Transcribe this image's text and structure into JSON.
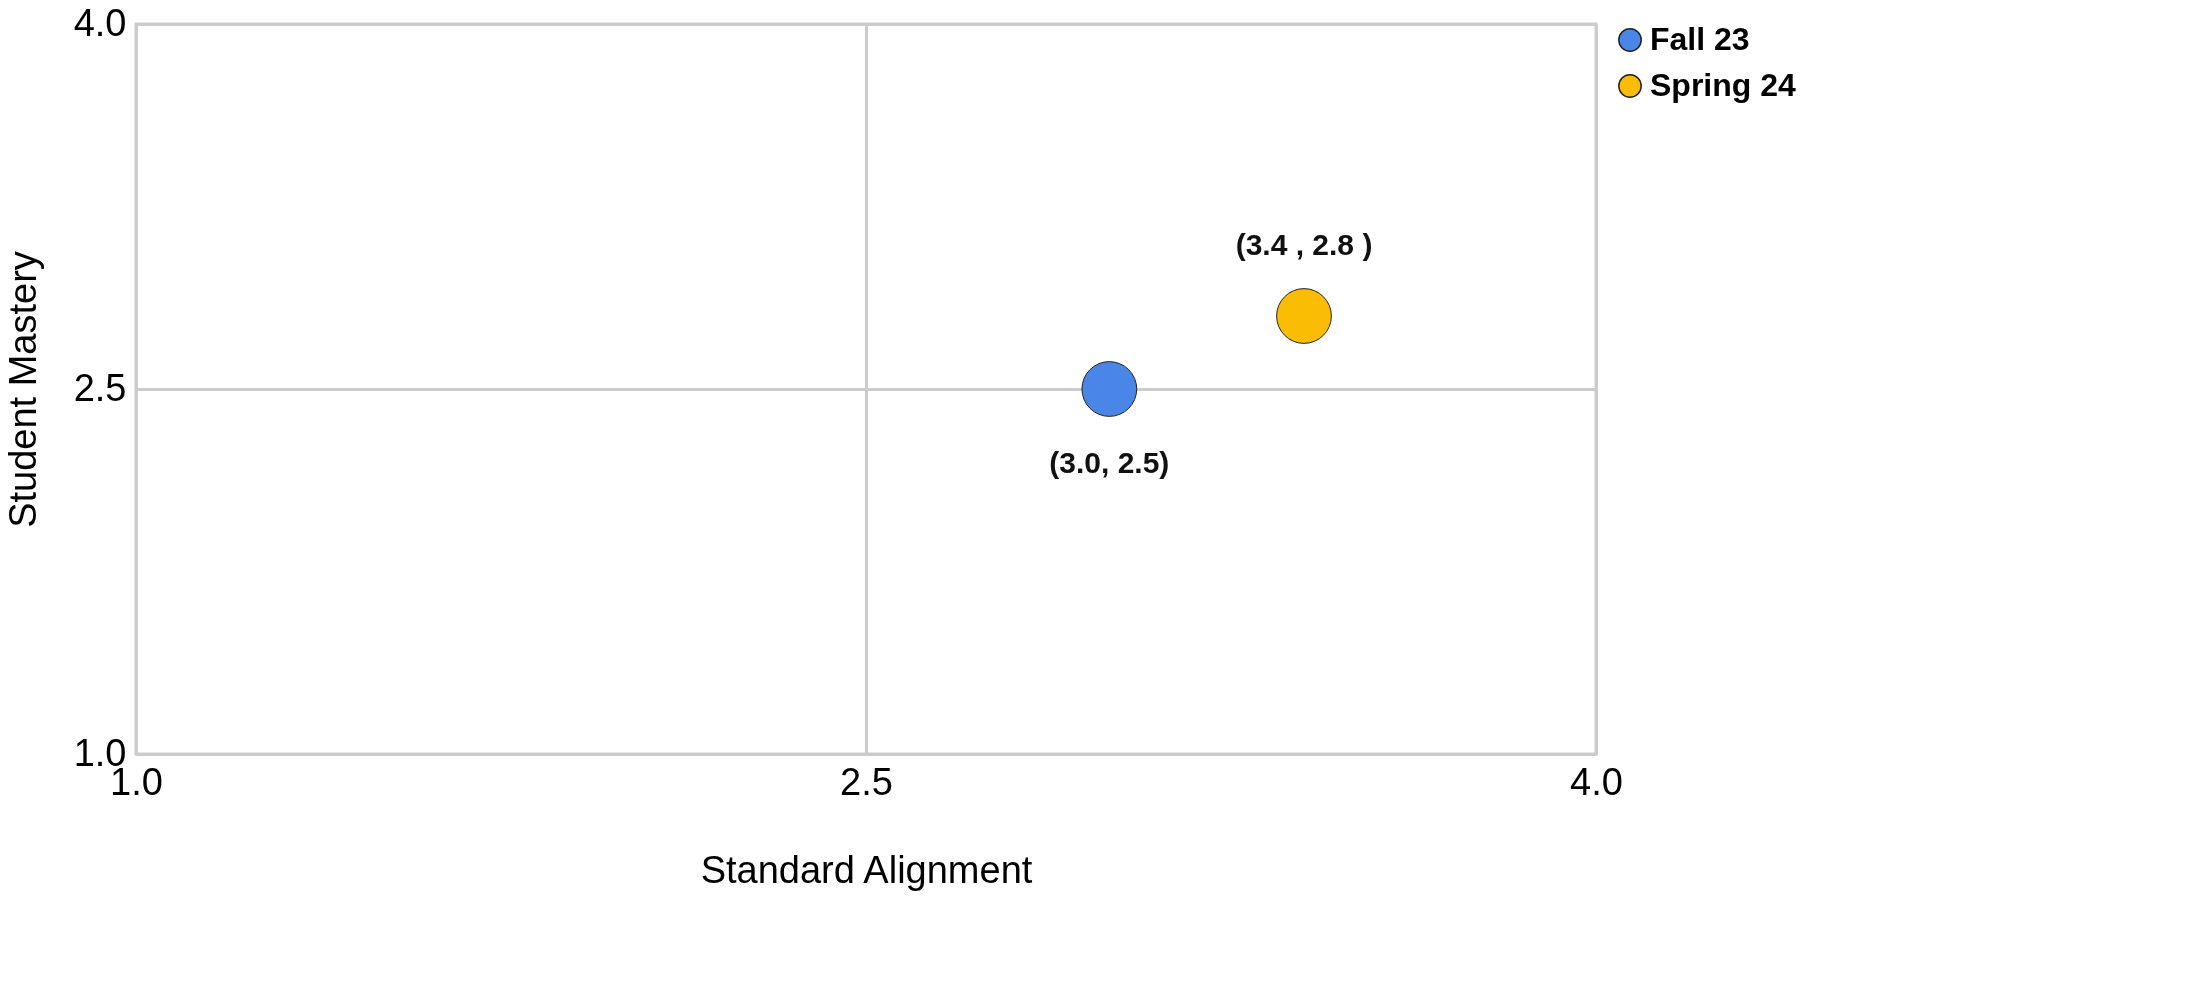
{
  "chart_data": {
    "type": "scatter",
    "xlabel": "Standard Alignment",
    "ylabel": "Student Mastery",
    "xlim": [
      1,
      4
    ],
    "ylim": [
      1,
      4
    ],
    "xticks": [
      {
        "value": 1,
        "label": "1.0"
      },
      {
        "value": 2.5,
        "label": "2.5"
      },
      {
        "value": 4,
        "label": "4.0"
      }
    ],
    "yticks": [
      {
        "value": 1,
        "label": "1.0"
      },
      {
        "value": 2.5,
        "label": "2.5"
      },
      {
        "value": 4,
        "label": "4.0"
      }
    ],
    "grid": true,
    "legend": "right",
    "marker": "circle",
    "series": [
      {
        "name": "Fall  23",
        "color": "#4a86e8",
        "x": [
          3.0
        ],
        "values": [
          2.5
        ],
        "value_labels": [
          "(3.0, 2.5)"
        ]
      },
      {
        "name": "Spring 24",
        "color": "#fbbc04",
        "x": [
          3.4
        ],
        "values": [
          2.8
        ],
        "value_labels": [
          "(3.4 , 2.8 )"
        ]
      }
    ]
  }
}
